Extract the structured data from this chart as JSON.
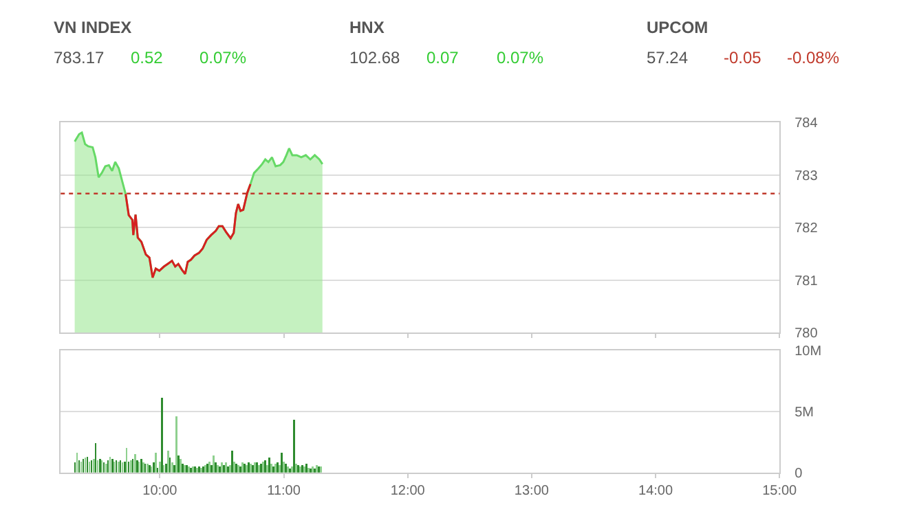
{
  "chart_data": [
    {
      "type": "other",
      "categories": [
        "VN INDEX",
        "HNX",
        "UPCOM"
      ],
      "annotations": [
        "783.17",
        "0.52",
        "0.07%",
        "102.68",
        "0.07",
        "0.07%",
        "57.24",
        "-0.05",
        "-0.08%"
      ],
      "colors": [
        "#555555",
        "#33cc33",
        "#33cc33",
        "#555555",
        "#33cc33",
        "#33cc33",
        "#555555",
        "#c0392b",
        "#c0392b"
      ]
    },
    {
      "type": "area",
      "xlim": [
        9.2,
        15
      ],
      "ylim": [
        780,
        784
      ],
      "yticks": [
        780,
        781,
        782,
        783,
        784
      ],
      "xticks": [
        {
          "value": 10,
          "label": null
        },
        {
          "value": 11,
          "label": null
        },
        {
          "value": 12,
          "label": null
        },
        {
          "value": 13,
          "label": null
        },
        {
          "value": 14,
          "label": null
        },
        {
          "value": 15,
          "label": null
        }
      ],
      "tick_labels": "y",
      "grid": "y",
      "marker": "none",
      "x": [
        9.313,
        9.349,
        9.371,
        9.397,
        9.422,
        9.458,
        9.48,
        9.506,
        9.531,
        9.56,
        9.589,
        9.615,
        9.64,
        9.669,
        9.698,
        9.724,
        9.749,
        9.778,
        9.786,
        9.804,
        9.822,
        9.851,
        9.887,
        9.916,
        9.942,
        9.967,
        9.996,
        10.033,
        10.069,
        10.098,
        10.124,
        10.149,
        10.178,
        10.204,
        10.225,
        10.251,
        10.28,
        10.316,
        10.345,
        10.378,
        10.414,
        10.451,
        10.476,
        10.505,
        10.534,
        10.571,
        10.596,
        10.614,
        10.632,
        10.651,
        10.673,
        10.705,
        10.731,
        10.76,
        10.796,
        10.825,
        10.851,
        10.876,
        10.905,
        10.934,
        10.971,
        10.996,
        11.021,
        11.043,
        11.069,
        11.105,
        11.141,
        11.178,
        11.214,
        11.25,
        11.287,
        11.312
      ],
      "series": [
        {
          "color": "#66d966",
          "values": [
            783.64,
            783.78,
            783.81,
            783.59,
            783.55,
            783.53,
            783.34,
            782.96,
            783.04,
            783.17,
            783.19,
            783.08,
            783.25,
            783.13,
            782.87,
            782.64,
            782.24,
            782.15,
            781.86,
            782.25,
            781.81,
            781.73,
            781.49,
            781.43,
            781.05,
            781.22,
            781.18,
            781.26,
            781.32,
            781.37,
            781.26,
            781.31,
            781.2,
            781.12,
            781.35,
            781.39,
            781.47,
            781.52,
            781.6,
            781.77,
            781.86,
            781.94,
            782.03,
            782.03,
            781.92,
            781.8,
            781.9,
            782.28,
            782.45,
            782.32,
            782.34,
            782.66,
            782.83,
            783.04,
            783.13,
            783.21,
            783.3,
            783.25,
            783.34,
            783.17,
            783.19,
            783.25,
            783.38,
            783.51,
            783.38,
            783.38,
            783.34,
            783.38,
            783.3,
            783.38,
            783.3,
            783.21
          ]
        },
        {
          "type": "line",
          "color": "#d62020",
          "x": [
            9.724,
            9.749,
            9.778,
            9.786,
            9.804,
            9.822,
            9.851,
            9.887,
            9.916,
            9.942,
            9.967,
            9.996,
            10.033,
            10.069,
            10.098,
            10.124,
            10.149,
            10.178,
            10.204,
            10.225,
            10.251,
            10.28,
            10.316,
            10.345,
            10.378,
            10.414,
            10.451,
            10.476,
            10.505,
            10.534,
            10.571,
            10.596,
            10.614,
            10.632,
            10.651,
            10.673,
            10.705,
            10.731
          ],
          "values": [
            782.64,
            782.24,
            782.15,
            781.86,
            782.25,
            781.81,
            781.73,
            781.49,
            781.43,
            781.05,
            781.22,
            781.18,
            781.26,
            781.32,
            781.37,
            781.26,
            781.31,
            781.2,
            781.12,
            781.35,
            781.39,
            781.47,
            781.52,
            781.6,
            781.77,
            781.86,
            781.94,
            782.03,
            782.03,
            781.92,
            781.8,
            781.9,
            782.28,
            782.45,
            782.32,
            782.34,
            782.66,
            782.83
          ]
        }
      ],
      "ref_lines": [
        {
          "axis": "y",
          "value": 782.65,
          "color": "#c0392b",
          "line_style": "dotted"
        }
      ]
    },
    {
      "type": "bar",
      "xlim": [
        9.2,
        15
      ],
      "ylim": [
        0,
        10
      ],
      "yticks": [
        0,
        {
          "value": 5,
          "label": "5M"
        },
        {
          "value": 10,
          "label": "10M"
        }
      ],
      "xticks": [
        {
          "value": 10,
          "label": "10:00"
        },
        {
          "value": 11,
          "label": "11:00"
        },
        {
          "value": 12,
          "label": "12:00"
        },
        {
          "value": 13,
          "label": "13:00"
        },
        {
          "value": 14,
          "label": "14:00"
        },
        {
          "value": 15,
          "label": "15:00"
        }
      ],
      "grid": "y",
      "x": [
        9.317,
        9.333,
        9.35,
        9.367,
        9.383,
        9.4,
        9.417,
        9.433,
        9.45,
        9.467,
        9.483,
        9.5,
        9.517,
        9.533,
        9.55,
        9.567,
        9.583,
        9.6,
        9.617,
        9.633,
        9.65,
        9.667,
        9.683,
        9.7,
        9.717,
        9.733,
        9.75,
        9.767,
        9.783,
        9.8,
        9.817,
        9.833,
        9.85,
        9.867,
        9.883,
        9.9,
        9.917,
        9.933,
        9.95,
        9.967,
        9.983,
        10,
        10.017,
        10.033,
        10.05,
        10.067,
        10.083,
        10.1,
        10.117,
        10.133,
        10.15,
        10.167,
        10.183,
        10.2,
        10.217,
        10.233,
        10.25,
        10.267,
        10.283,
        10.3,
        10.317,
        10.333,
        10.35,
        10.367,
        10.383,
        10.4,
        10.417,
        10.433,
        10.45,
        10.467,
        10.483,
        10.5,
        10.517,
        10.533,
        10.55,
        10.567,
        10.583,
        10.6,
        10.617,
        10.633,
        10.65,
        10.667,
        10.683,
        10.7,
        10.717,
        10.733,
        10.75,
        10.767,
        10.783,
        10.8,
        10.817,
        10.833,
        10.85,
        10.867,
        10.883,
        10.9,
        10.917,
        10.933,
        10.95,
        10.967,
        10.983,
        11,
        11.017,
        11.033,
        11.05,
        11.067,
        11.083,
        11.1,
        11.117,
        11.133,
        11.15,
        11.167,
        11.183,
        11.2,
        11.217,
        11.233,
        11.25,
        11.267,
        11.283,
        11.3
      ],
      "series": [
        {
          "colors": [
            "#2e8b2e",
            "#8fd08f",
            "#2e8b2e",
            "#8fd08f",
            "#2e8b2e",
            "#8fd08f",
            "#2e8b2e",
            "#8fd08f",
            "#2e8b2e",
            "#8fd08f",
            "#2e8b2e",
            "#8fd08f",
            "#2e8b2e",
            "#8fd08f",
            "#2e8b2e",
            "#8fd08f",
            "#2e8b2e",
            "#8fd08f",
            "#2e8b2e",
            "#8fd08f",
            "#2e8b2e",
            "#8fd08f",
            "#2e8b2e",
            "#8fd08f",
            "#2e8b2e",
            "#8fd08f",
            "#2e8b2e",
            "#8fd08f",
            "#2e8b2e",
            "#8fd08f",
            "#2e8b2e",
            "#8fd08f",
            "#2e8b2e",
            "#8fd08f",
            "#2e8b2e",
            "#8fd08f",
            "#2e8b2e",
            "#8fd08f",
            "#2e8b2e",
            "#8fd08f",
            "#2e8b2e",
            "#8fd08f",
            "#2e8b2e",
            "#8fd08f",
            "#2e8b2e",
            "#8fd08f",
            "#2e8b2e",
            "#8fd08f",
            "#2e8b2e",
            "#8fd08f",
            "#2e8b2e",
            "#8fd08f",
            "#2e8b2e",
            "#8fd08f",
            "#2e8b2e",
            "#8fd08f",
            "#2e8b2e",
            "#8fd08f",
            "#2e8b2e",
            "#8fd08f",
            "#2e8b2e",
            "#8fd08f",
            "#2e8b2e",
            "#8fd08f",
            "#2e8b2e",
            "#8fd08f",
            "#2e8b2e",
            "#8fd08f",
            "#2e8b2e",
            "#8fd08f",
            "#2e8b2e",
            "#8fd08f",
            "#2e8b2e",
            "#8fd08f",
            "#2e8b2e",
            "#8fd08f",
            "#2e8b2e",
            "#8fd08f",
            "#2e8b2e",
            "#8fd08f",
            "#2e8b2e",
            "#8fd08f",
            "#2e8b2e",
            "#8fd08f",
            "#2e8b2e",
            "#8fd08f",
            "#2e8b2e",
            "#8fd08f",
            "#2e8b2e",
            "#8fd08f",
            "#2e8b2e",
            "#8fd08f",
            "#2e8b2e",
            "#8fd08f",
            "#2e8b2e",
            "#8fd08f",
            "#2e8b2e",
            "#8fd08f",
            "#2e8b2e",
            "#8fd08f",
            "#2e8b2e",
            "#8fd08f",
            "#2e8b2e",
            "#8fd08f",
            "#2e8b2e",
            "#8fd08f",
            "#2e8b2e",
            "#8fd08f",
            "#2e8b2e",
            "#8fd08f",
            "#2e8b2e",
            "#8fd08f",
            "#2e8b2e",
            "#8fd08f",
            "#2e8b2e",
            "#8fd08f",
            "#2e8b2e",
            "#8fd08f",
            "#2e8b2e",
            "#8fd08f"
          ],
          "values": [
            0.8,
            1.6,
            1.0,
            0.9,
            1.1,
            1.2,
            1.3,
            0.9,
            1.0,
            1.1,
            2.4,
            1.0,
            1.1,
            1.0,
            0.8,
            0.7,
            1.0,
            1.3,
            1.1,
            0.9,
            1.0,
            0.9,
            1.0,
            0.8,
            0.9,
            2.0,
            0.9,
            1.0,
            1.1,
            1.5,
            1.0,
            0.9,
            1.1,
            0.8,
            0.7,
            0.7,
            0.6,
            0.5,
            0.8,
            1.6,
            0.4,
            0.9,
            6.1,
            0.6,
            0.7,
            1.8,
            1.2,
            0.8,
            0.6,
            4.6,
            1.4,
            1.1,
            0.7,
            0.6,
            0.6,
            0.5,
            0.4,
            0.5,
            0.5,
            0.4,
            0.5,
            0.4,
            0.5,
            0.6,
            0.7,
            0.9,
            0.6,
            1.4,
            0.8,
            0.6,
            0.5,
            0.8,
            0.6,
            0.8,
            0.5,
            0.6,
            1.8,
            0.9,
            0.7,
            0.6,
            0.5,
            0.8,
            0.7,
            0.6,
            0.8,
            0.7,
            0.6,
            0.8,
            0.8,
            0.6,
            0.7,
            0.9,
            1.0,
            0.6,
            1.2,
            0.7,
            0.5,
            0.7,
            0.8,
            0.6,
            1.6,
            0.9,
            0.7,
            0.5,
            0.3,
            0.5,
            4.3,
            0.7,
            0.6,
            0.5,
            0.6,
            0.5,
            0.7,
            0.4,
            0.3,
            0.5,
            0.3,
            0.6,
            0.5,
            0.5
          ]
        }
      ]
    }
  ]
}
